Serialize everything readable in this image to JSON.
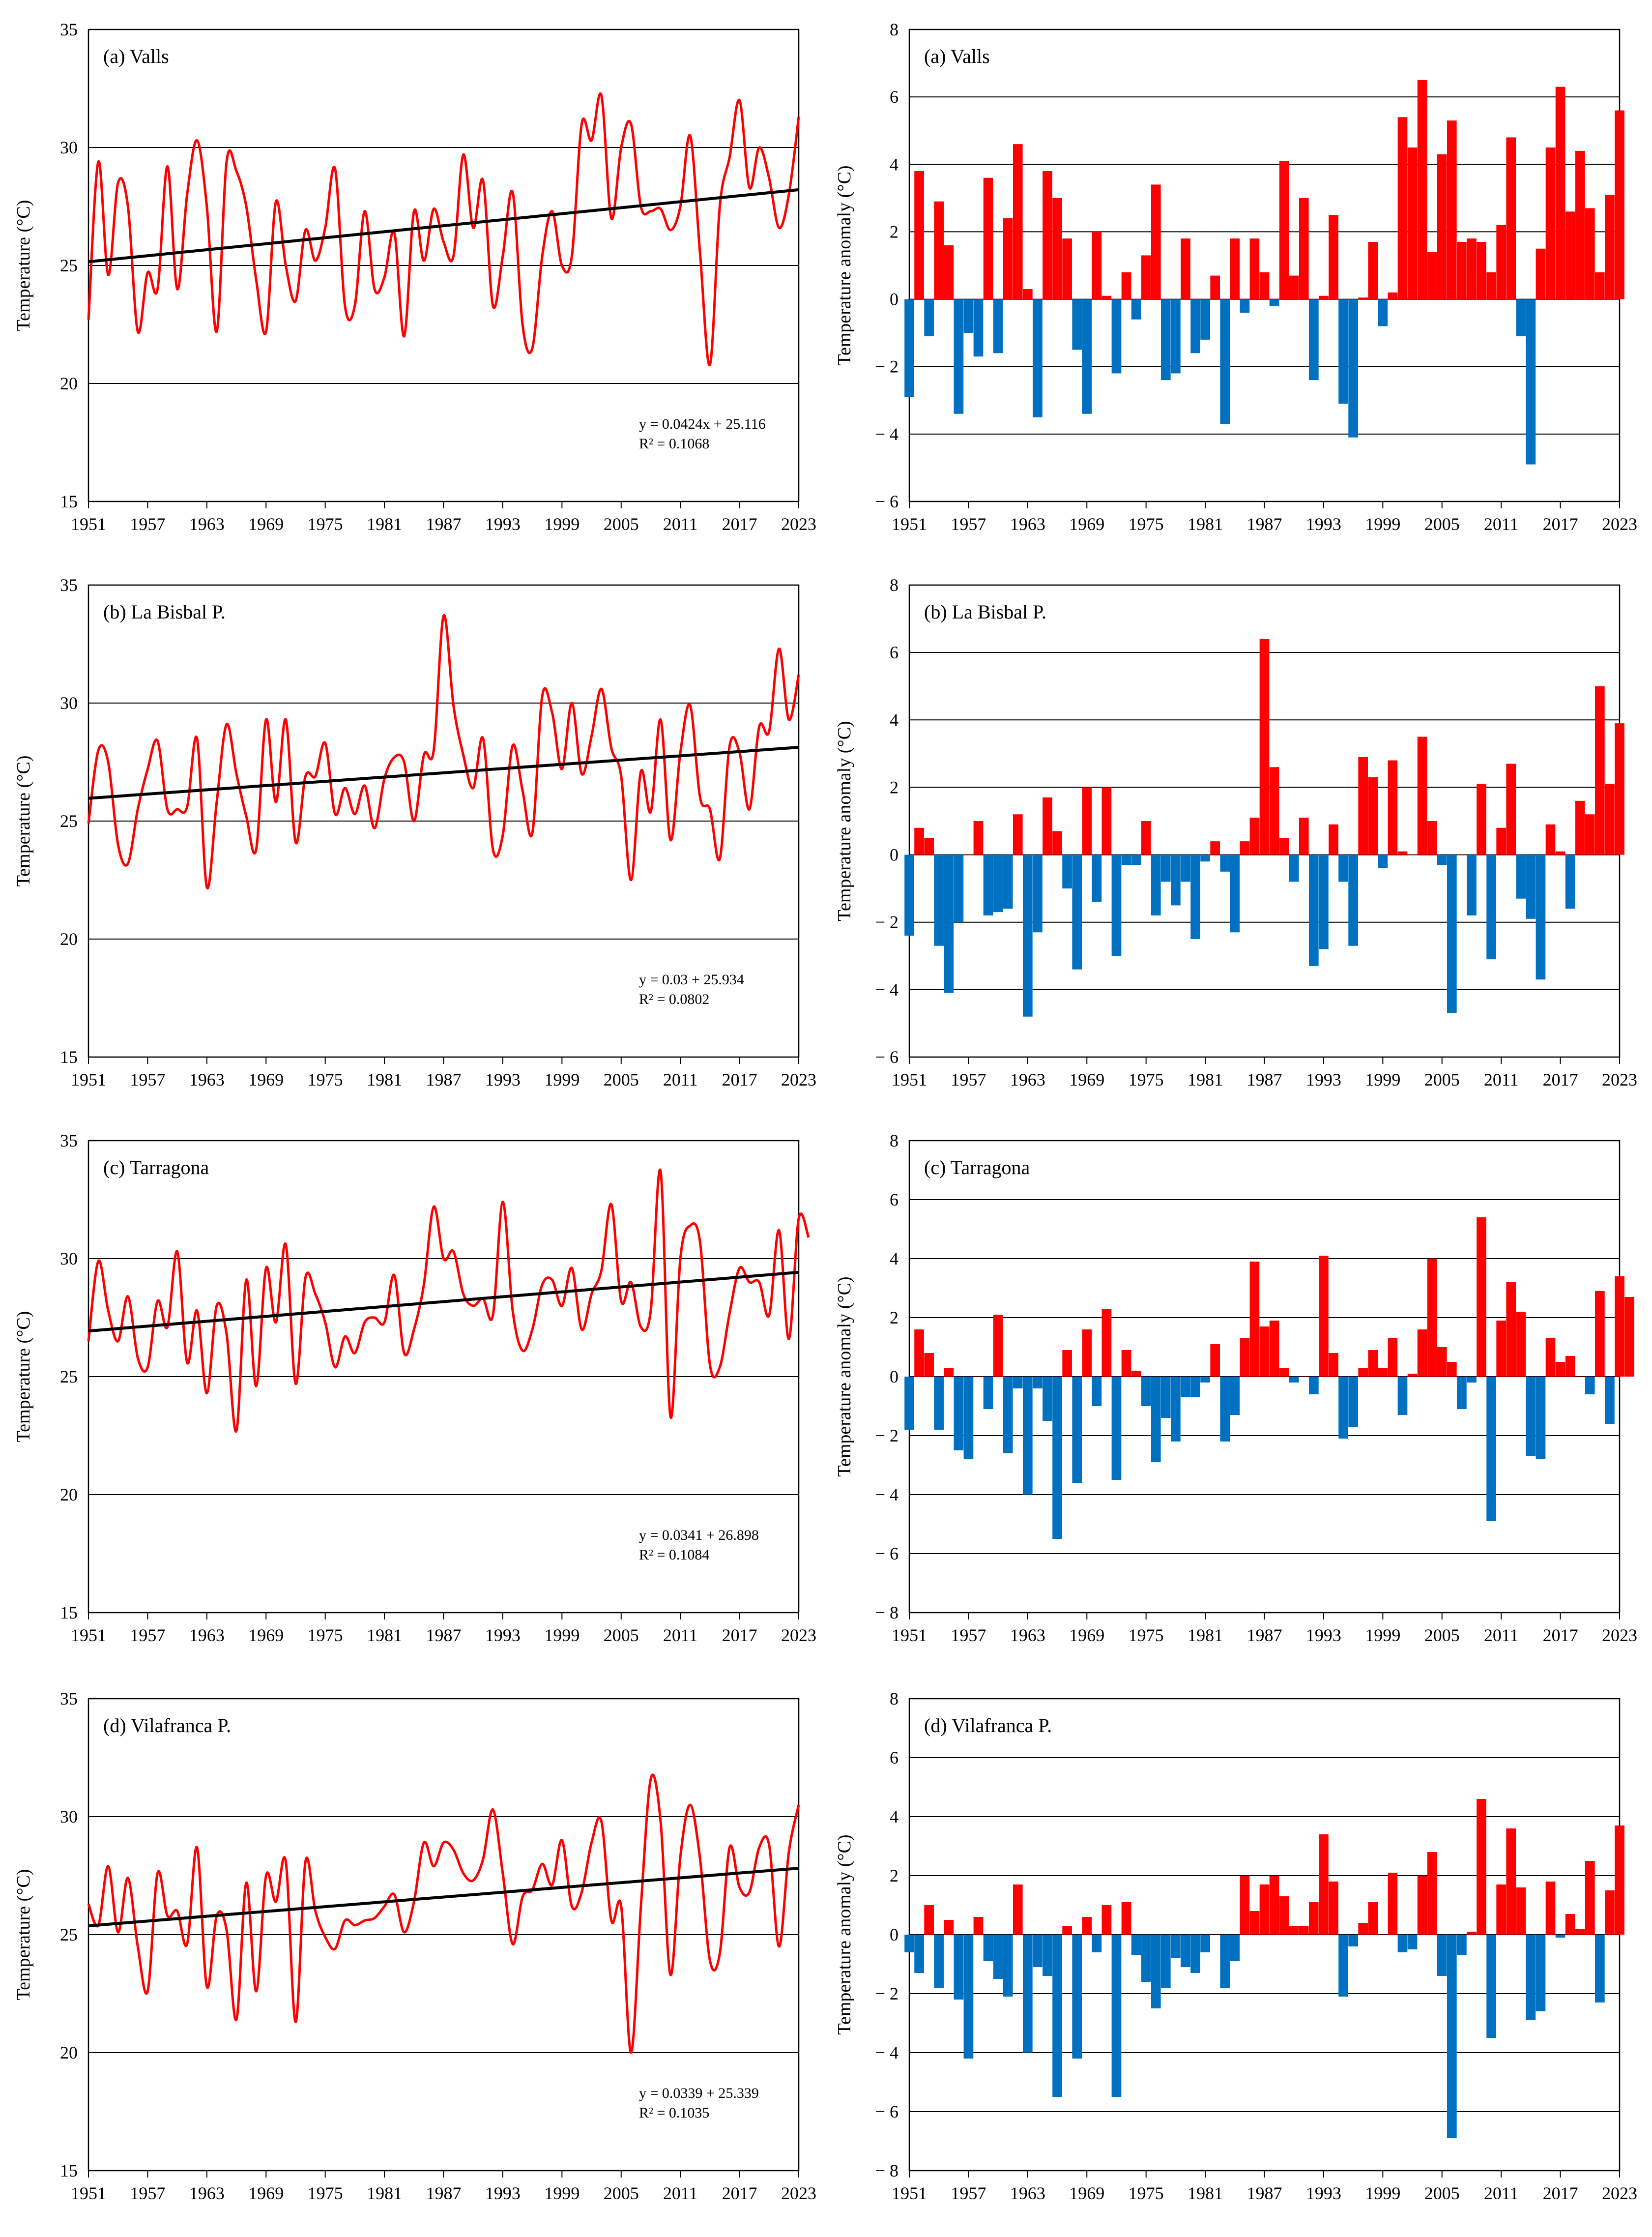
{
  "chart_data": [
    {
      "id": "valls_temp",
      "type": "line",
      "label": "(a) Valls",
      "ylabel": "Temperature (°C)",
      "ylim": [
        15,
        35
      ],
      "yticks": [
        15,
        20,
        25,
        30,
        35
      ],
      "xlim": [
        1951,
        2023
      ],
      "xticks": [
        1951,
        1957,
        1963,
        1969,
        1975,
        1981,
        1987,
        1993,
        1999,
        2005,
        2011,
        2017,
        2023
      ],
      "x_start": 1951,
      "values": [
        22.7,
        29.4,
        24.6,
        28.5,
        27.5,
        22.2,
        24.7,
        24.0,
        29.2,
        24.0,
        28.0,
        30.3,
        27.5,
        22.2,
        29.4,
        29.0,
        27.5,
        24.4,
        22.2,
        27.7,
        25.0,
        23.5,
        26.5,
        25.2,
        26.6,
        29.1,
        23.3,
        23.3,
        27.3,
        24.0,
        24.5,
        26.4,
        22.0,
        27.3,
        25.2,
        27.4,
        26.0,
        25.4,
        29.7,
        26.6,
        28.6,
        23.3,
        25.4,
        28.1,
        22.5,
        21.5,
        25.4,
        27.3,
        25.0,
        25.4,
        31.0,
        30.3,
        32.2,
        27.0,
        30.0,
        31.0,
        27.5,
        27.3,
        27.4,
        26.5,
        27.5,
        30.5,
        25.5,
        20.8,
        27.5,
        29.6,
        32.0,
        28.3,
        30.0,
        28.7,
        26.6,
        28.0,
        31.3
      ],
      "trend": {
        "a": 0.0424,
        "b": 25.116
      },
      "equation": "y = 0.0424x + 25.116",
      "r2": "R² = 0.1068"
    },
    {
      "id": "valls_anom",
      "type": "bar",
      "label": "(a) Valls",
      "ylabel": "Temperature anomaly (°C)",
      "ylim": [
        -6,
        8
      ],
      "yticks": [
        -6,
        -4,
        -2,
        0,
        2,
        4,
        6,
        8
      ],
      "xlim": [
        1951,
        2023
      ],
      "xticks": [
        1951,
        1957,
        1963,
        1969,
        1975,
        1981,
        1987,
        1993,
        1999,
        2005,
        2011,
        2017,
        2023
      ],
      "x_start": 1951,
      "values": [
        -2.9,
        3.8,
        -1.1,
        2.9,
        1.6,
        -3.4,
        -1.0,
        -1.7,
        3.6,
        -1.6,
        2.4,
        4.6,
        0.3,
        -3.5,
        3.8,
        3.0,
        1.8,
        -1.5,
        -3.4,
        2.0,
        0.1,
        -2.2,
        0.8,
        -0.6,
        1.3,
        3.4,
        -2.4,
        -2.2,
        1.8,
        -1.6,
        -1.2,
        0.7,
        -3.7,
        1.8,
        -0.4,
        1.8,
        0.8,
        -0.2,
        4.1,
        0.7,
        3.0,
        -2.4,
        0.1,
        2.5,
        -3.1,
        -4.1,
        0.05,
        1.7,
        -0.8,
        0.2,
        5.4,
        4.5,
        6.5,
        1.4,
        4.3,
        5.3,
        1.7,
        1.8,
        1.7,
        0.8,
        2.2,
        4.8,
        -1.1,
        -4.9,
        1.5,
        4.5,
        6.3,
        2.6,
        4.4,
        2.7,
        0.8,
        3.1,
        5.6
      ]
    },
    {
      "id": "bisbal_temp",
      "type": "line",
      "label": "(b) La Bisbal P.",
      "ylabel": "Temperature (°C)",
      "ylim": [
        15,
        35
      ],
      "yticks": [
        15,
        20,
        25,
        30,
        35
      ],
      "xlim": [
        1951,
        2023
      ],
      "xticks": [
        1951,
        1957,
        1963,
        1969,
        1975,
        1981,
        1987,
        1993,
        1999,
        2005,
        2011,
        2017,
        2023
      ],
      "x_start": 1951,
      "values": [
        24.9,
        28.0,
        27.5,
        24.0,
        23.2,
        25.5,
        27.2,
        28.4,
        25.5,
        25.5,
        25.6,
        28.5,
        22.2,
        25.8,
        29.1,
        27.0,
        25.2,
        23.8,
        29.3,
        25.8,
        29.3,
        24.1,
        26.9,
        26.9,
        28.3,
        25.3,
        26.4,
        25.3,
        26.5,
        24.7,
        26.8,
        27.7,
        27.5,
        25.0,
        27.8,
        28.0,
        33.7,
        29.9,
        27.8,
        26.4,
        28.5,
        23.8,
        24.4,
        28.2,
        26.3,
        24.5,
        30.3,
        29.6,
        27.2,
        30.0,
        27.0,
        28.6,
        30.6,
        28.1,
        26.9,
        22.5,
        27.1,
        25.4,
        29.3,
        24.2,
        27.9,
        29.9,
        26.0,
        25.5,
        23.4,
        28.2,
        27.9,
        25.5,
        29.0,
        28.8,
        32.3,
        29.3,
        31.2
      ],
      "trend": {
        "a": 0.03,
        "b": 25.934
      },
      "equation": "y = 0.03 + 25.934",
      "r2": "R² = 0.0802"
    },
    {
      "id": "bisbal_anom",
      "type": "bar",
      "label": "(b) La Bisbal P.",
      "ylabel": "Temperature anomaly (°C)",
      "ylim": [
        -6,
        8
      ],
      "yticks": [
        -6,
        -4,
        -2,
        0,
        2,
        4,
        6,
        8
      ],
      "xlim": [
        1951,
        2023
      ],
      "xticks": [
        1951,
        1957,
        1963,
        1969,
        1975,
        1981,
        1987,
        1993,
        1999,
        2005,
        2011,
        2017,
        2023
      ],
      "x_start": 1951,
      "values": [
        -2.4,
        0.8,
        0.5,
        -2.7,
        -4.1,
        -2.0,
        0.0,
        1.0,
        -1.8,
        -1.7,
        -1.6,
        1.2,
        -4.8,
        -2.3,
        1.7,
        0.7,
        -1.0,
        -3.4,
        2.0,
        -1.4,
        2.0,
        -3.0,
        -0.3,
        -0.3,
        1.0,
        -1.8,
        -0.8,
        -1.5,
        -0.8,
        -2.5,
        -0.2,
        0.4,
        -0.5,
        -2.3,
        0.4,
        1.1,
        6.4,
        2.6,
        0.5,
        -0.8,
        1.1,
        -3.3,
        -2.8,
        0.9,
        -0.8,
        -2.7,
        2.9,
        2.3,
        -0.4,
        2.8,
        0.1,
        0.0,
        3.5,
        1.0,
        -0.3,
        -4.7,
        0.0,
        -1.8,
        2.1,
        -3.1,
        0.8,
        2.7,
        -1.3,
        -1.9,
        -3.7,
        0.9,
        0.1,
        -1.6,
        1.6,
        1.2,
        5.0,
        2.1,
        3.9
      ]
    },
    {
      "id": "tarragona_temp",
      "type": "line",
      "label": "(c) Tarragona",
      "ylabel": "Temperature (°C)",
      "ylim": [
        15,
        35
      ],
      "yticks": [
        15,
        20,
        25,
        30,
        35
      ],
      "xlim": [
        1951,
        2023
      ],
      "xticks": [
        1951,
        1957,
        1963,
        1969,
        1975,
        1981,
        1987,
        1993,
        1999,
        2005,
        2011,
        2017,
        2023
      ],
      "x_start": 1951,
      "values": [
        26.5,
        29.9,
        27.8,
        26.5,
        28.4,
        25.8,
        25.4,
        28.2,
        27.1,
        30.3,
        25.6,
        27.8,
        24.3,
        28.0,
        26.8,
        22.7,
        29.1,
        24.6,
        29.6,
        27.3,
        30.6,
        24.7,
        29.2,
        28.5,
        27.3,
        25.4,
        26.7,
        26.0,
        27.3,
        27.5,
        27.3,
        29.3,
        26.0,
        27.0,
        28.9,
        32.2,
        30.0,
        30.3,
        28.5,
        28.0,
        28.3,
        27.6,
        32.4,
        27.8,
        26.1,
        27.0,
        28.9,
        29.1,
        28.0,
        29.6,
        27.0,
        28.5,
        29.5,
        32.3,
        28.2,
        29.0,
        27.1,
        27.8,
        33.7,
        23.3,
        30.0,
        31.4,
        30.7,
        25.5,
        25.4,
        27.7,
        29.6,
        29.0,
        29.0,
        27.6,
        31.2,
        26.6,
        31.7,
        30.9
      ],
      "trend": {
        "a": 0.0341,
        "b": 26.898
      },
      "equation": "y = 0.0341 + 26.898",
      "r2": "R² = 0.1084"
    },
    {
      "id": "tarragona_anom",
      "type": "bar",
      "label": "(c) Tarragona",
      "ylabel": "Temperature anomaly (°C)",
      "ylim": [
        -8,
        8
      ],
      "yticks": [
        -8,
        -6,
        -4,
        -2,
        0,
        2,
        4,
        6,
        8
      ],
      "xlim": [
        1951,
        2023
      ],
      "xticks": [
        1951,
        1957,
        1963,
        1969,
        1975,
        1981,
        1987,
        1993,
        1999,
        2005,
        2011,
        2017,
        2023
      ],
      "x_start": 1951,
      "values": [
        -1.8,
        1.6,
        0.8,
        -1.8,
        0.3,
        -2.5,
        -2.8,
        0.0,
        -1.1,
        2.1,
        -2.6,
        -0.4,
        -4.0,
        -0.4,
        -1.5,
        -5.5,
        0.9,
        -3.6,
        1.6,
        -1.0,
        2.3,
        -3.5,
        0.9,
        0.2,
        -1.0,
        -2.9,
        -1.4,
        -2.2,
        -0.7,
        -0.7,
        -0.2,
        1.1,
        -2.2,
        -1.3,
        1.3,
        3.9,
        1.7,
        1.9,
        0.3,
        -0.2,
        0.0,
        -0.6,
        4.1,
        0.8,
        -2.1,
        -1.7,
        0.3,
        0.9,
        0.3,
        1.3,
        -1.3,
        0.1,
        1.6,
        4.0,
        1.0,
        0.5,
        -1.1,
        -0.2,
        5.4,
        -4.9,
        1.9,
        3.2,
        2.2,
        -2.7,
        -2.8,
        1.3,
        0.5,
        0.7,
        0.0,
        -0.6,
        2.9,
        -1.6,
        3.4,
        2.7
      ]
    },
    {
      "id": "vilafranca_temp",
      "type": "line",
      "label": "(d) Vilafranca P.",
      "ylabel": "Temperature (°C)",
      "ylim": [
        15,
        35
      ],
      "yticks": [
        15,
        20,
        25,
        30,
        35
      ],
      "xlim": [
        1951,
        2023
      ],
      "xticks": [
        1951,
        1957,
        1963,
        1969,
        1975,
        1981,
        1987,
        1993,
        1999,
        2005,
        2011,
        2017,
        2023
      ],
      "x_start": 1951,
      "values": [
        26.3,
        25.4,
        27.9,
        25.1,
        27.4,
        24.5,
        22.6,
        27.6,
        25.8,
        26.0,
        24.6,
        28.7,
        22.8,
        25.8,
        25.2,
        21.4,
        27.2,
        22.6,
        27.5,
        26.4,
        28.1,
        21.3,
        28.1,
        26.0,
        24.9,
        24.4,
        25.6,
        25.4,
        25.6,
        25.7,
        26.2,
        26.7,
        25.1,
        26.4,
        28.9,
        27.9,
        28.9,
        28.6,
        27.6,
        27.3,
        28.2,
        30.3,
        27.6,
        24.6,
        26.6,
        26.9,
        28.0,
        27.1,
        29.0,
        26.2,
        26.8,
        28.9,
        29.8,
        25.6,
        26.2,
        20.0,
        26.2,
        31.6,
        29.8,
        23.3,
        28.3,
        30.5,
        28.2,
        23.9,
        24.2,
        28.7,
        27.0,
        26.8,
        28.7,
        28.8,
        24.5,
        28.5,
        30.5
      ],
      "trend": {
        "a": 0.0339,
        "b": 25.339
      },
      "equation": "y = 0.0339 + 25.339",
      "r2": "R² = 0.1035"
    },
    {
      "id": "vilafranca_anom",
      "type": "bar",
      "label": "(d) Vilafranca P.",
      "ylabel": "Temperature anomaly (°C)",
      "ylim": [
        -8,
        8
      ],
      "yticks": [
        -8,
        -6,
        -4,
        -2,
        0,
        2,
        4,
        6,
        8
      ],
      "xlim": [
        1951,
        2023
      ],
      "xticks": [
        1951,
        1957,
        1963,
        1969,
        1975,
        1981,
        1987,
        1993,
        1999,
        2005,
        2011,
        2017,
        2023
      ],
      "x_start": 1951,
      "values": [
        -0.6,
        -1.3,
        1.0,
        -1.8,
        0.5,
        -2.2,
        -4.2,
        0.6,
        -0.9,
        -1.5,
        -2.1,
        1.7,
        -4.0,
        -1.1,
        -1.4,
        -5.5,
        0.3,
        -4.2,
        0.6,
        -0.6,
        1.0,
        -5.5,
        1.1,
        -0.7,
        -1.6,
        -2.5,
        -1.8,
        -0.8,
        -1.1,
        -1.3,
        -0.6,
        0.0,
        -1.8,
        -0.9,
        2.0,
        0.8,
        1.7,
        2.0,
        1.3,
        0.3,
        0.3,
        1.1,
        3.4,
        1.8,
        -2.1,
        -0.4,
        0.4,
        1.1,
        0.0,
        2.1,
        -0.6,
        -0.5,
        2.0,
        2.8,
        -1.4,
        -6.9,
        -0.7,
        0.1,
        4.6,
        -3.5,
        1.7,
        3.6,
        1.6,
        -2.9,
        -2.6,
        1.8,
        -0.1,
        0.7,
        0.2,
        2.5,
        -2.3,
        1.5,
        3.7
      ]
    }
  ],
  "colors": {
    "line": "#ff0000",
    "trend": "#000000",
    "positive": "#ff0000",
    "negative": "#0070c0",
    "grid": "#000000"
  }
}
